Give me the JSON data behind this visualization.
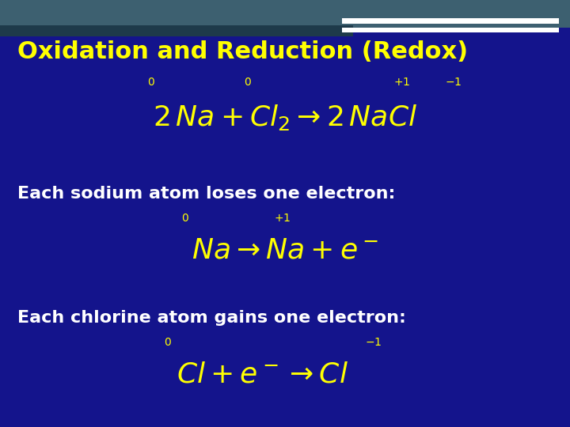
{
  "bg_color": "#14148c",
  "title": "Oxidation and Reduction (Redox)",
  "title_color": "#ffff00",
  "title_fontsize": 22,
  "text_color": "#ffffff",
  "formula_color": "#ffff00",
  "ox_num_color": "#ffff00",
  "section1_label": "Each sodium atom loses one electron:",
  "section2_label": "Each chlorine atom gains one electron:",
  "fig_width": 7.2,
  "fig_height": 5.4,
  "dpi": 100,
  "top_bar_color": "#3a6878",
  "top_bar2_color": "#2a4a5a",
  "white_bar_color": "#ffffff"
}
